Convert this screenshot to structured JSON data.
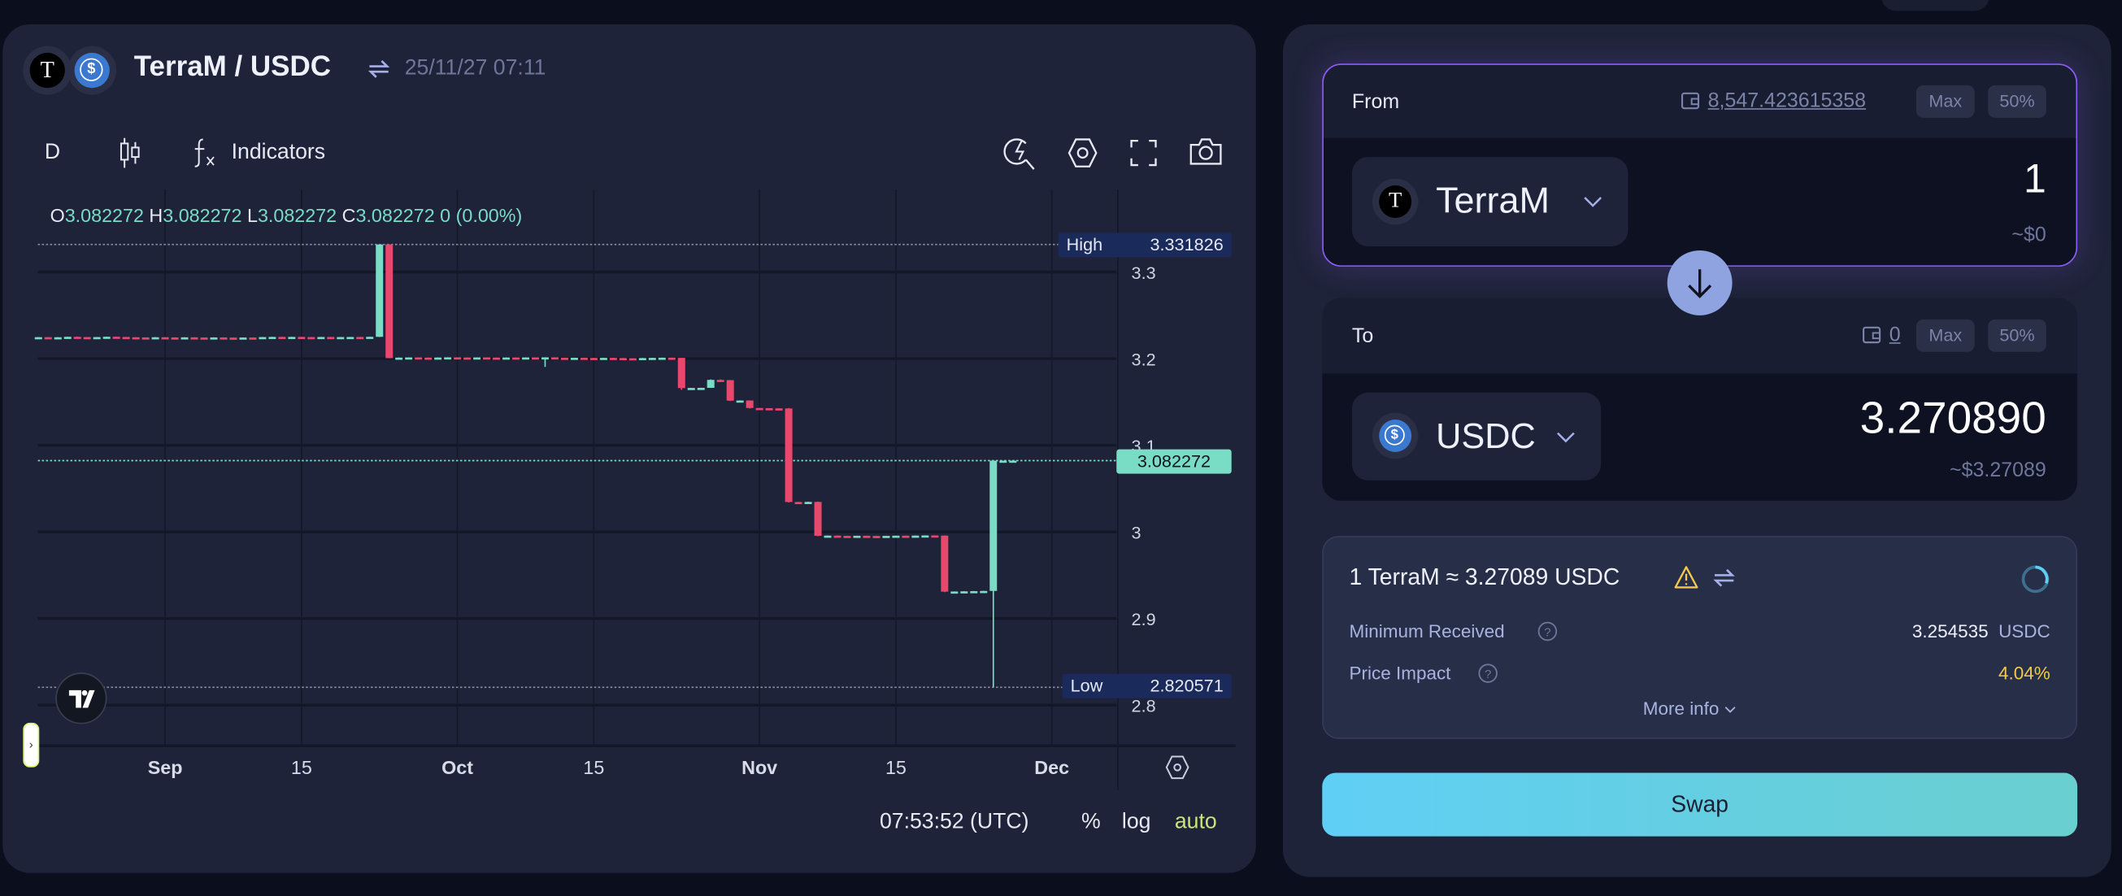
{
  "chart_header": {
    "base_token": "TerraM",
    "quote_token": "USDC",
    "title": "TerraM / USDC",
    "timestamp": "25/11/27 07:11",
    "base_icon_letter": "T",
    "quote_icon_letter": "$"
  },
  "toolbar": {
    "interval": "D",
    "indicators_label": "Indicators",
    "icons": [
      "candlestick-icon",
      "function-icon",
      "quick-search-icon",
      "settings-icon",
      "fullscreen-icon",
      "camera-icon"
    ]
  },
  "ohlc_legend": {
    "o_label": "O",
    "o": "3.082272",
    "h_label": "H",
    "h": "3.082272",
    "l_label": "L",
    "l": "3.082272",
    "c_label": "C",
    "c": "3.082272",
    "change": "0 (0.00%)"
  },
  "chart_data": {
    "type": "candlestick",
    "interval": "1D",
    "columns": [
      "date",
      "open",
      "high",
      "low",
      "close"
    ],
    "candles": [
      [
        "2025-08-19",
        3.2245,
        3.2248,
        3.2244,
        3.2248
      ],
      [
        "2025-08-20",
        3.2248,
        3.2249,
        3.2244,
        3.2245
      ],
      [
        "2025-08-21",
        3.2245,
        3.2248,
        3.2244,
        3.2247
      ],
      [
        "2025-08-22",
        3.2247,
        3.2253,
        3.2246,
        3.2252
      ],
      [
        "2025-08-23",
        3.2252,
        3.2253,
        3.2248,
        3.2249
      ],
      [
        "2025-08-24",
        3.2249,
        3.225,
        3.2246,
        3.2247
      ],
      [
        "2025-08-25",
        3.2247,
        3.225,
        3.2246,
        3.2249
      ],
      [
        "2025-08-26",
        3.2249,
        3.2254,
        3.2248,
        3.2253
      ],
      [
        "2025-08-27",
        3.2253,
        3.2254,
        3.2249,
        3.225
      ],
      [
        "2025-08-28",
        3.225,
        3.2251,
        3.2246,
        3.2247
      ],
      [
        "2025-08-29",
        3.2247,
        3.2248,
        3.2244,
        3.2245
      ],
      [
        "2025-08-30",
        3.2245,
        3.2246,
        3.2243,
        3.2244
      ],
      [
        "2025-08-31",
        3.2244,
        3.2248,
        3.2243,
        3.2247
      ],
      [
        "2025-09-01",
        3.2247,
        3.2248,
        3.2243,
        3.2245
      ],
      [
        "2025-09-02",
        3.2245,
        3.2246,
        3.2242,
        3.2243
      ],
      [
        "2025-09-03",
        3.2243,
        3.2247,
        3.2242,
        3.2246
      ],
      [
        "2025-09-04",
        3.2246,
        3.2247,
        3.2243,
        3.2244
      ],
      [
        "2025-09-05",
        3.2244,
        3.2245,
        3.2241,
        3.2242
      ],
      [
        "2025-09-06",
        3.2242,
        3.2246,
        3.2241,
        3.2245
      ],
      [
        "2025-09-07",
        3.2245,
        3.2246,
        3.2242,
        3.2243
      ],
      [
        "2025-09-08",
        3.2243,
        3.2244,
        3.224,
        3.2241
      ],
      [
        "2025-09-09",
        3.2241,
        3.2245,
        3.224,
        3.2244
      ],
      [
        "2025-09-10",
        3.2244,
        3.2245,
        3.2241,
        3.2242
      ],
      [
        "2025-09-11",
        3.2242,
        3.225,
        3.2241,
        3.2249
      ],
      [
        "2025-09-12",
        3.2249,
        3.2252,
        3.2248,
        3.2251
      ],
      [
        "2025-09-13",
        3.2251,
        3.2253,
        3.2247,
        3.2248
      ],
      [
        "2025-09-14",
        3.2248,
        3.2252,
        3.2247,
        3.2251
      ],
      [
        "2025-09-15",
        3.2251,
        3.2252,
        3.2247,
        3.2249
      ],
      [
        "2025-09-16",
        3.2249,
        3.225,
        3.2246,
        3.2247
      ],
      [
        "2025-09-17",
        3.2247,
        3.2251,
        3.2246,
        3.225
      ],
      [
        "2025-09-18",
        3.225,
        3.2251,
        3.2243,
        3.2244
      ],
      [
        "2025-09-19",
        3.2244,
        3.225,
        3.2243,
        3.2249
      ],
      [
        "2025-09-20",
        3.2249,
        3.2251,
        3.2248,
        3.225
      ],
      [
        "2025-09-21",
        3.225,
        3.2251,
        3.2247,
        3.2248
      ],
      [
        "2025-09-22",
        3.2248,
        3.2253,
        3.2247,
        3.2252
      ],
      [
        "2025-09-23",
        3.2252,
        3.331826,
        3.225,
        3.3318
      ],
      [
        "2025-09-24",
        3.3318,
        3.331826,
        3.2004,
        3.2006
      ],
      [
        "2025-09-25",
        3.2006,
        3.2013,
        3.2005,
        3.2012
      ],
      [
        "2025-09-26",
        3.2012,
        3.2015,
        3.2011,
        3.2014
      ],
      [
        "2025-09-27",
        3.2014,
        3.2015,
        3.2011,
        3.2012
      ],
      [
        "2025-09-28",
        3.2012,
        3.2013,
        3.2009,
        3.201
      ],
      [
        "2025-09-29",
        3.201,
        3.2014,
        3.2009,
        3.2013
      ],
      [
        "2025-09-30",
        3.2013,
        3.2016,
        3.2012,
        3.2015
      ],
      [
        "2025-10-01",
        3.2015,
        3.2016,
        3.2012,
        3.2013
      ],
      [
        "2025-10-02",
        3.2013,
        3.2014,
        3.201,
        3.2011
      ],
      [
        "2025-10-03",
        3.2011,
        3.2015,
        3.201,
        3.2014
      ],
      [
        "2025-10-04",
        3.2014,
        3.2015,
        3.2011,
        3.2012
      ],
      [
        "2025-10-05",
        3.2012,
        3.2013,
        3.2009,
        3.201
      ],
      [
        "2025-10-06",
        3.201,
        3.2014,
        3.2009,
        3.2013
      ],
      [
        "2025-10-07",
        3.2013,
        3.2014,
        3.201,
        3.2011
      ],
      [
        "2025-10-08",
        3.2011,
        3.2015,
        3.201,
        3.2014
      ],
      [
        "2025-10-09",
        3.2014,
        3.2015,
        3.2012,
        3.2013
      ],
      [
        "2025-10-10",
        3.2013,
        3.2016,
        3.1905,
        3.2015
      ],
      [
        "2025-10-11",
        3.2015,
        3.2016,
        3.2009,
        3.201
      ],
      [
        "2025-10-12",
        3.201,
        3.2011,
        3.2007,
        3.2008
      ],
      [
        "2025-10-13",
        3.2008,
        3.2011,
        3.2007,
        3.201
      ],
      [
        "2025-10-14",
        3.201,
        3.2011,
        3.2007,
        3.2008
      ],
      [
        "2025-10-15",
        3.2008,
        3.2009,
        3.2005,
        3.2006
      ],
      [
        "2025-10-16",
        3.2006,
        3.201,
        3.2005,
        3.2009
      ],
      [
        "2025-10-17",
        3.2009,
        3.201,
        3.2006,
        3.2007
      ],
      [
        "2025-10-18",
        3.2007,
        3.2008,
        3.2004,
        3.2005
      ],
      [
        "2025-10-19",
        3.2005,
        3.2006,
        3.2003,
        3.2004
      ],
      [
        "2025-10-20",
        3.2004,
        3.2008,
        3.2003,
        3.2007
      ],
      [
        "2025-10-21",
        3.2007,
        3.201,
        3.2006,
        3.2009
      ],
      [
        "2025-10-22",
        3.2009,
        3.2012,
        3.2008,
        3.2011
      ],
      [
        "2025-10-23",
        3.2011,
        3.2012,
        3.2008,
        3.2009
      ],
      [
        "2025-10-24",
        3.2009,
        3.2009,
        3.164,
        3.166
      ],
      [
        "2025-10-25",
        3.166,
        3.1663,
        3.1659,
        3.1662
      ],
      [
        "2025-10-26",
        3.1661,
        3.1664,
        3.166,
        3.1663
      ],
      [
        "2025-10-27",
        3.1663,
        3.176,
        3.1662,
        3.1755
      ],
      [
        "2025-10-28",
        3.1755,
        3.176,
        3.175,
        3.1752
      ],
      [
        "2025-10-29",
        3.1752,
        3.1753,
        3.151,
        3.1515
      ],
      [
        "2025-10-30",
        3.1515,
        3.1518,
        3.1513,
        3.1517
      ],
      [
        "2025-10-31",
        3.1517,
        3.1518,
        3.1425,
        3.143
      ],
      [
        "2025-11-01",
        3.143,
        3.1431,
        3.1426,
        3.1428
      ],
      [
        "2025-11-02",
        3.1428,
        3.1429,
        3.1424,
        3.1426
      ],
      [
        "2025-11-03",
        3.1426,
        3.1427,
        3.1423,
        3.1425
      ],
      [
        "2025-11-04",
        3.1425,
        3.143,
        3.034,
        3.0345
      ],
      [
        "2025-11-05",
        3.0345,
        3.0347,
        3.0341,
        3.0343
      ],
      [
        "2025-11-06",
        3.0343,
        3.0348,
        3.0342,
        3.0346
      ],
      [
        "2025-11-07",
        3.0346,
        3.035,
        2.995,
        2.9955
      ],
      [
        "2025-11-08",
        2.9955,
        2.9958,
        2.9954,
        2.9957
      ],
      [
        "2025-11-09",
        2.9957,
        2.9958,
        2.9953,
        2.9954
      ],
      [
        "2025-11-10",
        2.9954,
        2.9955,
        2.9951,
        2.9952
      ],
      [
        "2025-11-11",
        2.9952,
        2.9956,
        2.9951,
        2.9955
      ],
      [
        "2025-11-12",
        2.9955,
        2.9956,
        2.9952,
        2.9953
      ],
      [
        "2025-11-13",
        2.9953,
        2.9954,
        2.995,
        2.9951
      ],
      [
        "2025-11-14",
        2.9951,
        2.9955,
        2.995,
        2.9954
      ],
      [
        "2025-11-15",
        2.9954,
        2.9957,
        2.9953,
        2.9956
      ],
      [
        "2025-11-16",
        2.9956,
        2.9957,
        2.9954,
        2.9955
      ],
      [
        "2025-11-17",
        2.9955,
        2.9958,
        2.9954,
        2.9957
      ],
      [
        "2025-11-18",
        2.9957,
        2.996,
        2.9956,
        2.9959
      ],
      [
        "2025-11-19",
        2.9959,
        2.996,
        2.9956,
        2.9957
      ],
      [
        "2025-11-20",
        2.9957,
        2.9958,
        2.9305,
        2.931
      ],
      [
        "2025-11-21",
        2.931,
        2.9313,
        2.9309,
        2.9312
      ],
      [
        "2025-11-22",
        2.9312,
        2.9315,
        2.9311,
        2.9314
      ],
      [
        "2025-11-23",
        2.9314,
        2.9317,
        2.9313,
        2.9316
      ],
      [
        "2025-11-24",
        2.9316,
        2.9319,
        2.9315,
        2.9318
      ],
      [
        "2025-11-25",
        2.9318,
        3.082272,
        2.820571,
        3.082272
      ],
      [
        "2025-11-26",
        3.082272,
        3.082272,
        3.082272,
        3.082272
      ],
      [
        "2025-11-27",
        3.082272,
        3.082272,
        3.082272,
        3.082272
      ]
    ],
    "y_ticks": [
      "3.3",
      "3.2",
      "3.1",
      "3",
      "2.9",
      "2.8"
    ],
    "y_tick_values": [
      3.3,
      3.2,
      3.1,
      3.0,
      2.9,
      2.8
    ],
    "x_ticks": [
      {
        "label": "Sep",
        "date": "2025-09-01",
        "bold": true
      },
      {
        "label": "15",
        "date": "2025-09-15",
        "bold": false
      },
      {
        "label": "Oct",
        "date": "2025-10-01",
        "bold": true
      },
      {
        "label": "15",
        "date": "2025-10-15",
        "bold": false
      },
      {
        "label": "Nov",
        "date": "2025-11-01",
        "bold": true
      },
      {
        "label": "15",
        "date": "2025-11-15",
        "bold": false
      },
      {
        "label": "Dec",
        "date": "2025-12-01",
        "bold": true
      }
    ],
    "ylim": [
      2.78,
      3.39
    ],
    "xlim": [
      "2025-08-19",
      "2025-12-07"
    ],
    "grid": true,
    "high": {
      "label": "High",
      "value": "3.331826"
    },
    "low": {
      "label": "Low",
      "value": "2.820571"
    },
    "last_price": "3.082272",
    "colors": {
      "up": "#79dcc4",
      "down": "#e8486c"
    }
  },
  "chart_footer": {
    "time": "07:53:52 (UTC)",
    "percent": "%",
    "log": "log",
    "auto": "auto"
  },
  "swap": {
    "from": {
      "label": "From",
      "balance": "8,547.423615358",
      "max_label": "Max",
      "half_label": "50%",
      "token": "TerraM",
      "token_icon_letter": "T",
      "amount": "1",
      "usd_value": "~$0"
    },
    "to": {
      "label": "To",
      "balance": "0",
      "max_label": "Max",
      "half_label": "50%",
      "token": "USDC",
      "token_icon_letter": "$",
      "amount": "3.270890",
      "usd_value": "~$3.27089"
    },
    "rate": "1 TerraM ≈ 3.27089 USDC",
    "minimum_received_label": "Minimum Received",
    "minimum_received_value": "3.254535",
    "minimum_received_unit": "USDC",
    "price_impact_label": "Price Impact",
    "price_impact_value": "4.04%",
    "more_info_label": "More info",
    "swap_button_label": "Swap",
    "colors": {
      "accent_border": "#8b5cf6",
      "warning": "#f5c84c",
      "button_start": "#5fcff5",
      "button_end": "#6acfcf"
    }
  }
}
